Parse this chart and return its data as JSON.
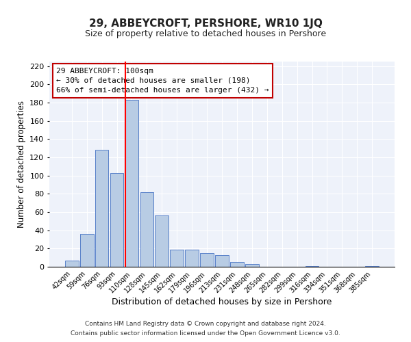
{
  "title": "29, ABBEYCROFT, PERSHORE, WR10 1JQ",
  "subtitle": "Size of property relative to detached houses in Pershore",
  "xlabel": "Distribution of detached houses by size in Pershore",
  "ylabel": "Number of detached properties",
  "bar_labels": [
    "42sqm",
    "59sqm",
    "76sqm",
    "93sqm",
    "110sqm",
    "128sqm",
    "145sqm",
    "162sqm",
    "179sqm",
    "196sqm",
    "213sqm",
    "231sqm",
    "248sqm",
    "265sqm",
    "282sqm",
    "299sqm",
    "316sqm",
    "334sqm",
    "351sqm",
    "368sqm",
    "385sqm"
  ],
  "bar_values": [
    7,
    36,
    128,
    103,
    183,
    82,
    56,
    19,
    19,
    15,
    13,
    5,
    3,
    0,
    0,
    0,
    1,
    0,
    0,
    0,
    1
  ],
  "bar_color": "#b8cce4",
  "bar_edge_color": "#4472c4",
  "vline_x_index": 4,
  "vline_color": "#ff0000",
  "annotation_line1": "29 ABBEYCROFT: 100sqm",
  "annotation_line2": "← 30% of detached houses are smaller (198)",
  "annotation_line3": "66% of semi-detached houses are larger (432) →",
  "box_edge_color": "#c00000",
  "ylim": [
    0,
    225
  ],
  "yticks": [
    0,
    20,
    40,
    60,
    80,
    100,
    120,
    140,
    160,
    180,
    200,
    220
  ],
  "footer1": "Contains HM Land Registry data © Crown copyright and database right 2024.",
  "footer2": "Contains public sector information licensed under the Open Government Licence v3.0.",
  "background_color": "#eef2fa",
  "fig_background": "#ffffff"
}
